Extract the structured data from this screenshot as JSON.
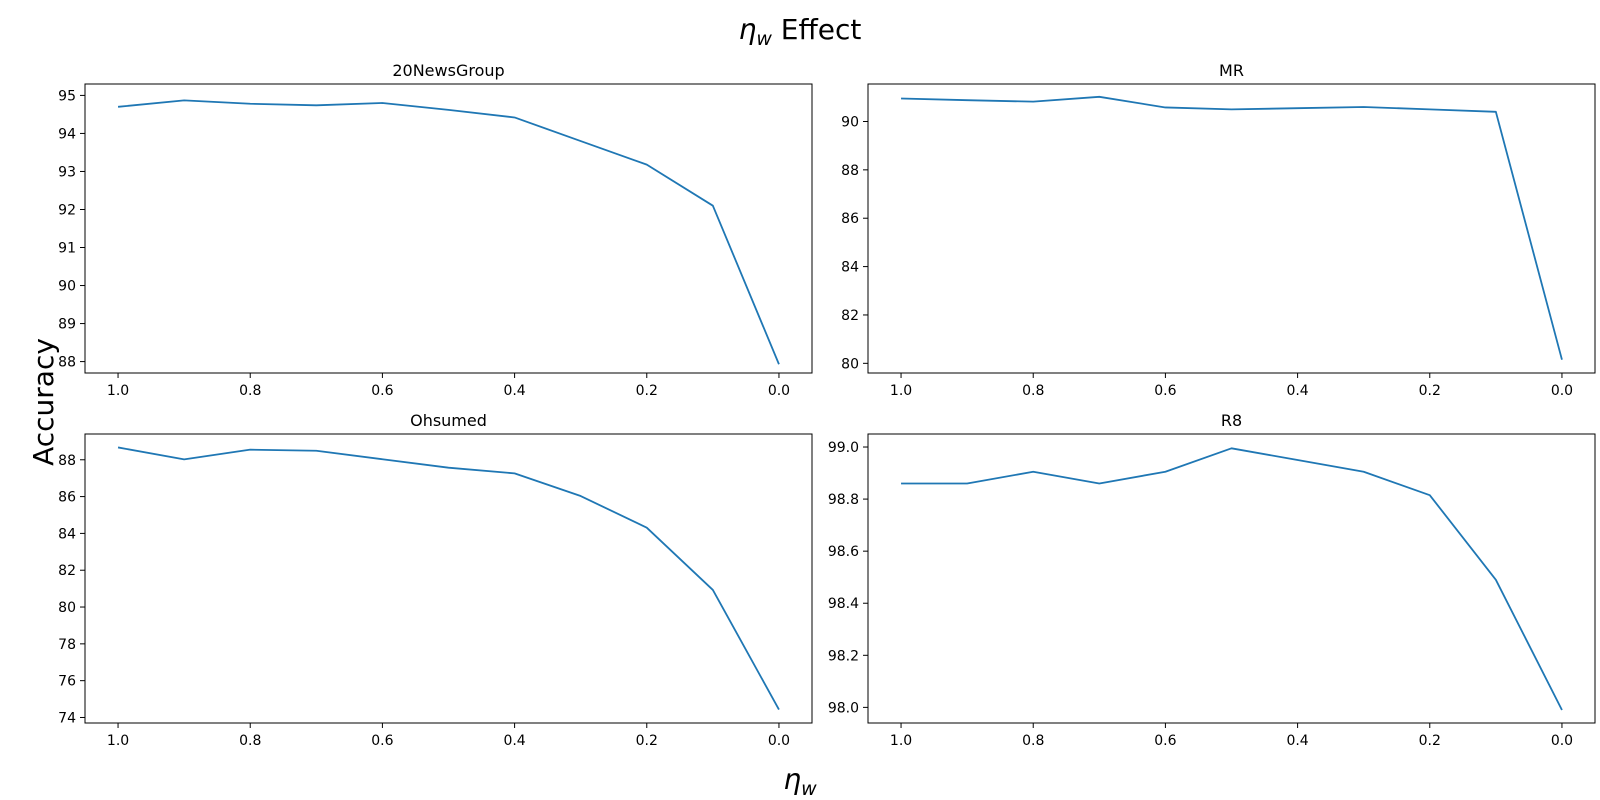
{
  "figure": {
    "title_symbol": "η",
    "title_subscript": "w",
    "title_text": " Effect",
    "xlabel_symbol": "η",
    "xlabel_subscript": "w",
    "ylabel": "Accuracy"
  },
  "chart_data": [
    {
      "type": "line",
      "title": "20NewsGroup",
      "x": [
        1.0,
        0.9,
        0.8,
        0.7,
        0.6,
        0.5,
        0.4,
        0.3,
        0.2,
        0.1,
        0.0
      ],
      "series": [
        {
          "values": [
            94.7,
            94.87,
            94.78,
            94.74,
            94.8,
            94.62,
            94.42,
            93.8,
            93.18,
            92.1,
            87.93
          ]
        }
      ],
      "xlim": [
        1.05,
        -0.05
      ],
      "ylim": [
        87.7,
        95.3
      ],
      "xticks": [
        1.0,
        0.8,
        0.6,
        0.4,
        0.2,
        0.0
      ],
      "yticks": [
        88,
        89,
        90,
        91,
        92,
        93,
        94,
        95
      ],
      "xtick_labels": [
        "1.0",
        "0.8",
        "0.6",
        "0.4",
        "0.2",
        "0.0"
      ],
      "ytick_labels": [
        "88",
        "89",
        "90",
        "91",
        "92",
        "93",
        "94",
        "95"
      ],
      "color": "#1f77b4"
    },
    {
      "type": "line",
      "title": "MR",
      "x": [
        1.0,
        0.9,
        0.8,
        0.7,
        0.6,
        0.5,
        0.4,
        0.3,
        0.2,
        0.1,
        0.0
      ],
      "series": [
        {
          "values": [
            90.95,
            90.88,
            90.82,
            91.02,
            90.58,
            90.5,
            90.55,
            90.6,
            90.5,
            90.4,
            80.15
          ]
        }
      ],
      "xlim": [
        1.05,
        -0.05
      ],
      "ylim": [
        79.6,
        91.55
      ],
      "xticks": [
        1.0,
        0.8,
        0.6,
        0.4,
        0.2,
        0.0
      ],
      "yticks": [
        80,
        82,
        84,
        86,
        88,
        90
      ],
      "xtick_labels": [
        "1.0",
        "0.8",
        "0.6",
        "0.4",
        "0.2",
        "0.0"
      ],
      "ytick_labels": [
        "80",
        "82",
        "84",
        "86",
        "88",
        "90"
      ],
      "color": "#1f77b4"
    },
    {
      "type": "line",
      "title": "Ohsumed",
      "x": [
        1.0,
        0.9,
        0.8,
        0.7,
        0.6,
        0.5,
        0.4,
        0.3,
        0.2,
        0.1,
        0.0
      ],
      "series": [
        {
          "values": [
            88.67,
            88.02,
            88.55,
            88.49,
            88.03,
            87.57,
            87.26,
            86.03,
            84.31,
            80.93,
            74.43
          ]
        }
      ],
      "xlim": [
        1.05,
        -0.05
      ],
      "ylim": [
        73.7,
        89.4
      ],
      "xticks": [
        1.0,
        0.8,
        0.6,
        0.4,
        0.2,
        0.0
      ],
      "yticks": [
        74,
        76,
        78,
        80,
        82,
        84,
        86,
        88
      ],
      "xtick_labels": [
        "1.0",
        "0.8",
        "0.6",
        "0.4",
        "0.2",
        "0.0"
      ],
      "ytick_labels": [
        "74",
        "76",
        "78",
        "80",
        "82",
        "84",
        "86",
        "88"
      ],
      "color": "#1f77b4"
    },
    {
      "type": "line",
      "title": "R8",
      "x": [
        1.0,
        0.9,
        0.8,
        0.7,
        0.6,
        0.5,
        0.4,
        0.3,
        0.2,
        0.1,
        0.0
      ],
      "series": [
        {
          "values": [
            98.86,
            98.86,
            98.905,
            98.86,
            98.905,
            98.995,
            98.95,
            98.905,
            98.815,
            98.49,
            97.99
          ]
        }
      ],
      "xlim": [
        1.05,
        -0.05
      ],
      "ylim": [
        97.94,
        99.05
      ],
      "xticks": [
        1.0,
        0.8,
        0.6,
        0.4,
        0.2,
        0.0
      ],
      "yticks": [
        98.0,
        98.2,
        98.4,
        98.6,
        98.8,
        99.0
      ],
      "xtick_labels": [
        "1.0",
        "0.8",
        "0.6",
        "0.4",
        "0.2",
        "0.0"
      ],
      "ytick_labels": [
        "98.0",
        "98.2",
        "98.4",
        "98.6",
        "98.8",
        "99.0"
      ],
      "color": "#1f77b4"
    }
  ]
}
